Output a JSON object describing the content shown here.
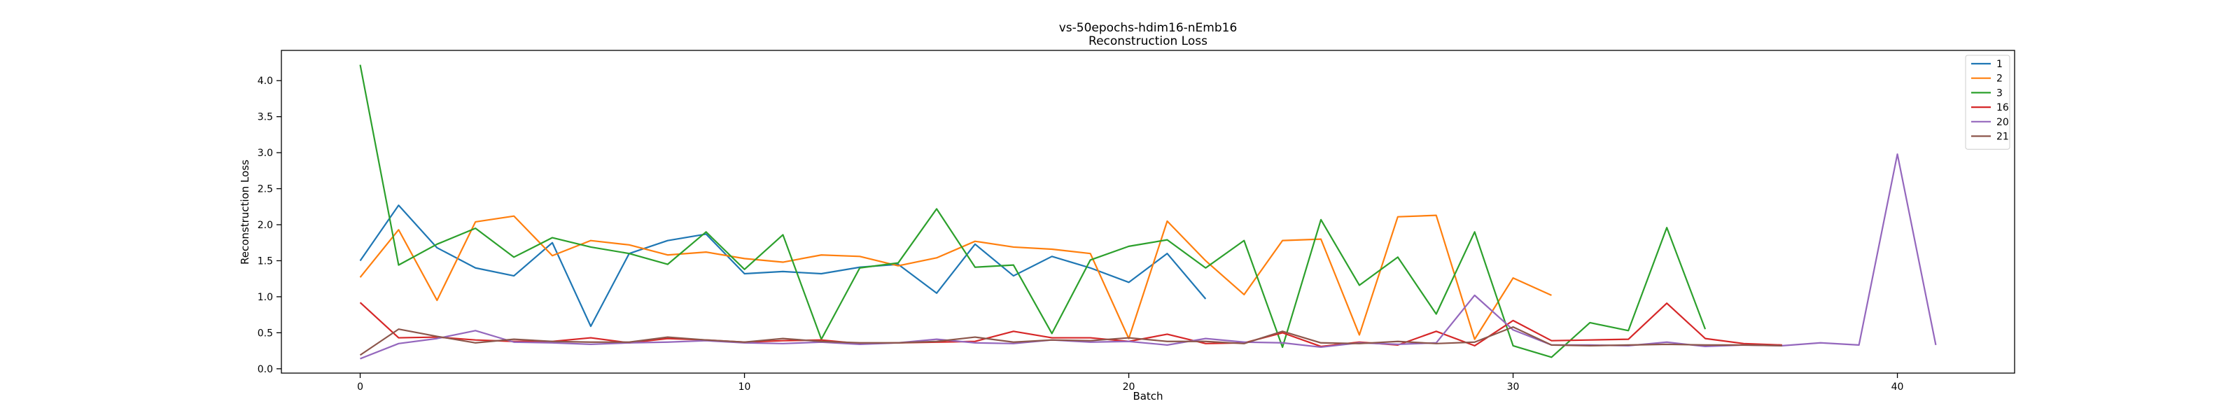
{
  "chart_data": {
    "type": "line",
    "title": "vs-50epochs-hdim16-nEmb16",
    "subtitle": "Reconstruction Loss",
    "xlabel": "Batch",
    "ylabel": "Reconstruction Loss",
    "xlim": [
      -2.05,
      43.05
    ],
    "ylim": [
      -0.06,
      4.42
    ],
    "xticks": [
      0,
      10,
      20,
      30,
      40
    ],
    "yticks": [
      0.0,
      0.5,
      1.0,
      1.5,
      2.0,
      2.5,
      3.0,
      3.5,
      4.0
    ],
    "ytick_labels": [
      "0.0",
      "0.5",
      "1.0",
      "1.5",
      "2.0",
      "2.5",
      "3.0",
      "3.5",
      "4.0"
    ],
    "grid": false,
    "legend_position": "top-right",
    "series": [
      {
        "name": "1",
        "color": "#1f77b4",
        "values": [
          1.5,
          2.27,
          1.68,
          1.4,
          1.29,
          1.75,
          0.59,
          1.6,
          1.78,
          1.87,
          1.32,
          1.35,
          1.32,
          1.41,
          1.45,
          1.05,
          1.73,
          1.29,
          1.56,
          1.4,
          1.2,
          1.6,
          0.97
        ]
      },
      {
        "name": "2",
        "color": "#ff7f0e",
        "values": [
          1.27,
          1.93,
          0.95,
          2.04,
          2.12,
          1.57,
          1.78,
          1.72,
          1.58,
          1.62,
          1.53,
          1.48,
          1.58,
          1.56,
          1.43,
          1.54,
          1.77,
          1.69,
          1.66,
          1.6,
          0.42,
          2.05,
          1.5,
          1.03,
          1.78,
          1.8,
          0.47,
          2.11,
          2.13,
          0.41,
          1.26,
          1.02
        ]
      },
      {
        "name": "3",
        "color": "#2ca02c",
        "values": [
          4.22,
          1.44,
          1.73,
          1.95,
          1.55,
          1.82,
          1.69,
          1.6,
          1.45,
          1.9,
          1.38,
          1.86,
          0.41,
          1.4,
          1.47,
          2.22,
          1.41,
          1.44,
          0.49,
          1.51,
          1.7,
          1.79,
          1.4,
          1.78,
          0.3,
          2.07,
          1.16,
          1.55,
          0.76,
          1.9,
          0.32,
          0.16,
          0.64,
          0.53,
          1.96,
          0.55
        ]
      },
      {
        "name": "16",
        "color": "#d62728",
        "values": [
          0.92,
          0.43,
          0.44,
          0.4,
          0.38,
          0.38,
          0.43,
          0.36,
          0.42,
          0.4,
          0.37,
          0.39,
          0.4,
          0.35,
          0.36,
          0.37,
          0.38,
          0.52,
          0.43,
          0.43,
          0.38,
          0.48,
          0.35,
          0.36,
          0.5,
          0.31,
          0.37,
          0.33,
          0.52,
          0.32,
          0.67,
          0.39,
          0.4,
          0.41,
          0.91,
          0.42,
          0.35,
          0.33
        ]
      },
      {
        "name": "20",
        "color": "#9467bd",
        "values": [
          0.14,
          0.35,
          0.42,
          0.53,
          0.37,
          0.36,
          0.34,
          0.36,
          0.37,
          0.39,
          0.36,
          0.35,
          0.37,
          0.34,
          0.36,
          0.41,
          0.36,
          0.35,
          0.4,
          0.37,
          0.38,
          0.33,
          0.42,
          0.37,
          0.36,
          0.3,
          0.36,
          0.34,
          0.36,
          1.02,
          0.54,
          0.33,
          0.33,
          0.32,
          0.37,
          0.31,
          0.33,
          0.32,
          0.36,
          0.33,
          2.98,
          0.33
        ]
      },
      {
        "name": "21",
        "color": "#8c564b",
        "values": [
          0.19,
          0.55,
          0.45,
          0.36,
          0.41,
          0.38,
          0.37,
          0.37,
          0.44,
          0.4,
          0.37,
          0.42,
          0.38,
          0.36,
          0.36,
          0.38,
          0.44,
          0.37,
          0.4,
          0.39,
          0.43,
          0.38,
          0.38,
          0.35,
          0.52,
          0.36,
          0.35,
          0.38,
          0.35,
          0.37,
          0.58,
          0.33,
          0.32,
          0.33,
          0.34,
          0.33,
          0.33,
          0.32
        ]
      }
    ]
  }
}
